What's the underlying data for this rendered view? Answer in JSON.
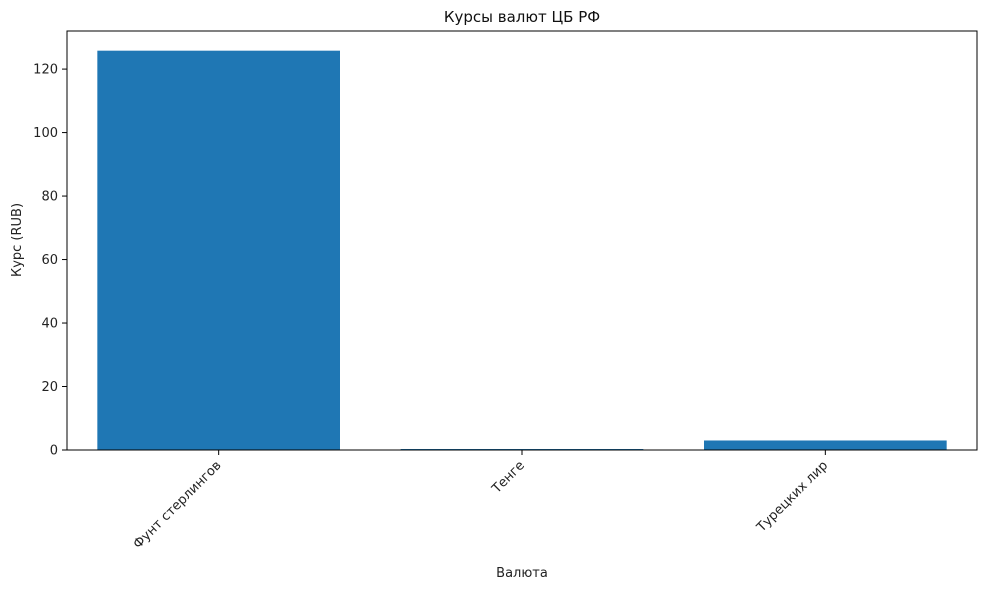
{
  "chart_data": {
    "type": "bar",
    "title": "Курсы валют ЦБ РФ",
    "xlabel": "Валюта",
    "ylabel": "Курс (RUB)",
    "categories": [
      "Фунт стерлингов",
      "Тенге",
      "Турецких лир"
    ],
    "values": [
      125.8,
      0.18,
      3.0
    ],
    "ylim": [
      0,
      132
    ],
    "yticks": [
      0,
      20,
      40,
      60,
      80,
      100,
      120
    ],
    "grid": false,
    "bar_color": "#1f77b4"
  }
}
